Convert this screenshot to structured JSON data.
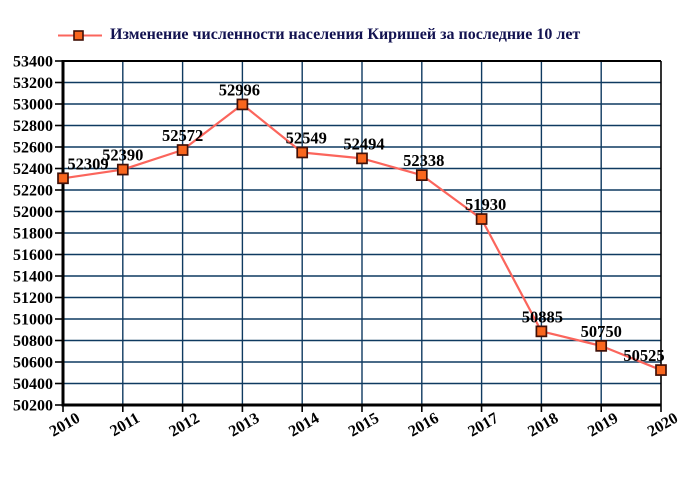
{
  "legend": {
    "label": "Изменение численности населения Киришей за последние 10 лет"
  },
  "colors": {
    "background": "#ffffff",
    "grid": "#0f3a60",
    "axis": "#000000",
    "line": "#fb655c",
    "marker_fill": "#f9661e",
    "marker_border": "#401008",
    "point_label": "#000000",
    "tick_label": "#000000",
    "legend_text": "#121250"
  },
  "chart_data": {
    "type": "line",
    "title": "Изменение численности населения Киришей за последние 10 лет",
    "series_name": "Изменение численности населения Киришей за последние 10 лет",
    "x": [
      "2010",
      "2011",
      "2012",
      "2013",
      "2014",
      "2015",
      "2016",
      "2017",
      "2018",
      "2019",
      "2020"
    ],
    "values": [
      52309,
      52390,
      52572,
      52996,
      52549,
      52494,
      52338,
      51930,
      50885,
      50750,
      50525
    ],
    "ylim": [
      50200,
      53400
    ],
    "ytick_step": 200,
    "xlabel": "",
    "ylabel": "",
    "grid": true,
    "legend_position": "top-left",
    "marker": "square"
  }
}
